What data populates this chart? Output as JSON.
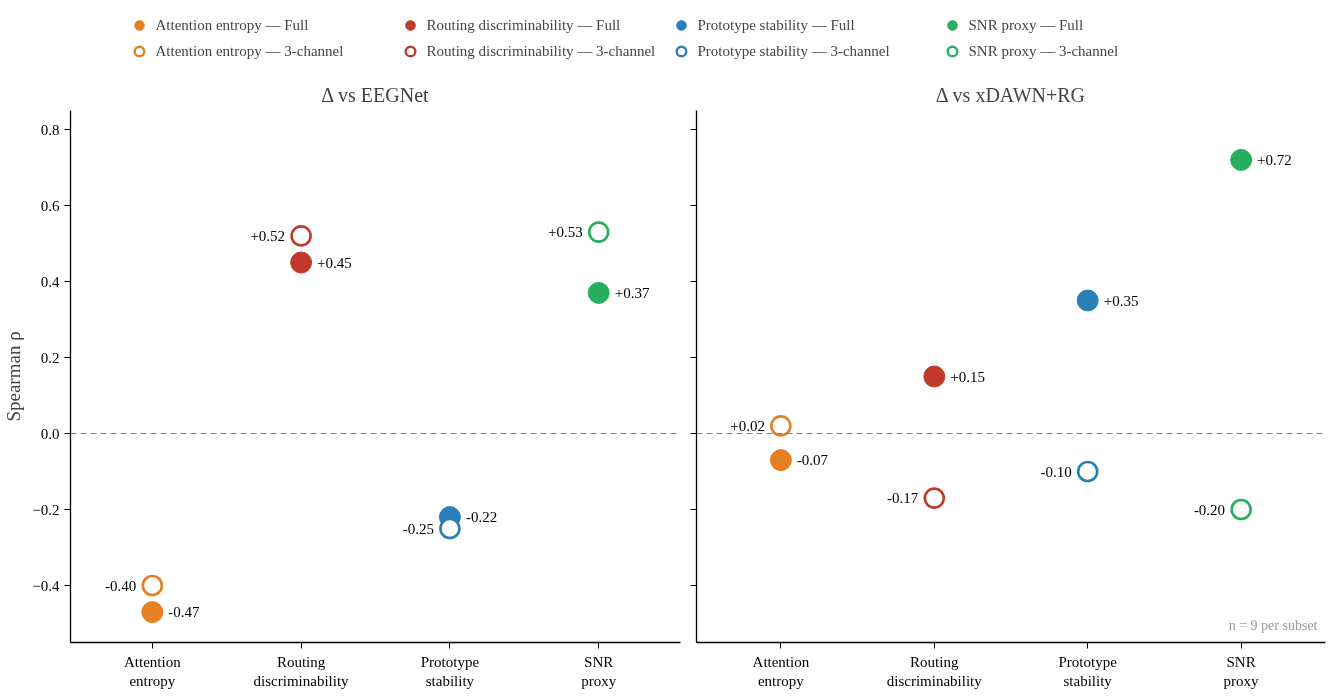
{
  "chart_data": [
    {
      "type": "scatter",
      "title": "Δ vs EEGNet",
      "ylabel": "Spearman ρ",
      "categories": [
        "Attention entropy",
        "Routing discriminability",
        "Prototype stability",
        "SNR proxy"
      ],
      "ylim": [
        -0.55,
        0.85
      ],
      "yticks": [
        {
          "value": -0.4,
          "label": "−0.4"
        },
        {
          "value": -0.2,
          "label": "−0.2"
        },
        {
          "value": 0.0,
          "label": "0.0"
        },
        {
          "value": 0.2,
          "label": "0.2"
        },
        {
          "value": 0.4,
          "label": "0.4"
        },
        {
          "value": 0.6,
          "label": "0.6"
        },
        {
          "value": 0.8,
          "label": "0.8"
        }
      ],
      "grid": false,
      "legend": "top",
      "ref_lines": [
        {
          "axis": "y",
          "value": 0,
          "color": "#808080",
          "line_style": "dashed"
        }
      ],
      "series": [
        {
          "name": "Attention entropy — Full",
          "color": "#e67e22",
          "marker": "circle",
          "values": [
            -0.47,
            null,
            null,
            null
          ],
          "value_labels": [
            "-0.47",
            null,
            null,
            null
          ]
        },
        {
          "name": "Attention entropy — 3-channel",
          "color": "#e67e22",
          "marker": "circle_open",
          "values": [
            -0.4,
            null,
            null,
            null
          ],
          "value_labels": [
            "-0.40",
            null,
            null,
            null
          ]
        },
        {
          "name": "Routing discriminability — Full",
          "color": "#c0392b",
          "marker": "circle",
          "values": [
            null,
            0.45,
            null,
            null
          ],
          "value_labels": [
            null,
            "+0.45",
            null,
            null
          ]
        },
        {
          "name": "Routing discriminability — 3-channel",
          "color": "#c0392b",
          "marker": "circle_open",
          "values": [
            null,
            0.52,
            null,
            null
          ],
          "value_labels": [
            null,
            "+0.52",
            null,
            null
          ]
        },
        {
          "name": "Prototype stability — Full",
          "color": "#2980b9",
          "marker": "circle",
          "values": [
            null,
            null,
            -0.22,
            null
          ],
          "value_labels": [
            null,
            null,
            "-0.22",
            null
          ]
        },
        {
          "name": "Prototype stability — 3-channel",
          "color": "#2980b9",
          "marker": "circle_open",
          "values": [
            null,
            null,
            -0.25,
            null
          ],
          "value_labels": [
            null,
            null,
            "-0.25",
            null
          ]
        },
        {
          "name": "SNR proxy — Full",
          "color": "#27ae60",
          "marker": "circle",
          "values": [
            null,
            null,
            null,
            0.37
          ],
          "value_labels": [
            null,
            null,
            null,
            "+0.37"
          ]
        },
        {
          "name": "SNR proxy — 3-channel",
          "color": "#27ae60",
          "marker": "circle_open",
          "values": [
            null,
            null,
            null,
            0.53
          ],
          "value_labels": [
            null,
            null,
            null,
            "+0.53"
          ]
        }
      ]
    },
    {
      "type": "scatter",
      "title": "Δ vs xDAWN+RG",
      "categories": [
        "Attention entropy",
        "Routing discriminability",
        "Prototype stability",
        "SNR proxy"
      ],
      "ylim": [
        -0.55,
        0.85
      ],
      "yticks": [
        -0.4,
        -0.2,
        0.0,
        0.2,
        0.4,
        0.6,
        0.8
      ],
      "tick_labels": "x",
      "grid": false,
      "ref_lines": [
        {
          "axis": "y",
          "value": 0,
          "color": "#808080",
          "line_style": "dashed"
        }
      ],
      "annotations": [
        "n = 9 per subset"
      ],
      "series": [
        {
          "color": "#e67e22",
          "marker": "circle",
          "values": [
            -0.07,
            null,
            null,
            null
          ],
          "value_labels": [
            "-0.07",
            null,
            null,
            null
          ]
        },
        {
          "color": "#e67e22",
          "marker": "circle_open",
          "values": [
            0.02,
            null,
            null,
            null
          ],
          "value_labels": [
            "+0.02",
            null,
            null,
            null
          ]
        },
        {
          "color": "#c0392b",
          "marker": "circle",
          "values": [
            null,
            0.15,
            null,
            null
          ],
          "value_labels": [
            null,
            "+0.15",
            null,
            null
          ]
        },
        {
          "color": "#c0392b",
          "marker": "circle_open",
          "values": [
            null,
            -0.17,
            null,
            null
          ],
          "value_labels": [
            null,
            "-0.17",
            null,
            null
          ]
        },
        {
          "color": "#2980b9",
          "marker": "circle",
          "values": [
            null,
            null,
            0.35,
            null
          ],
          "value_labels": [
            null,
            null,
            "+0.35",
            null
          ]
        },
        {
          "color": "#2980b9",
          "marker": "circle_open",
          "values": [
            null,
            null,
            -0.1,
            null
          ],
          "value_labels": [
            null,
            null,
            "-0.10",
            null
          ]
        },
        {
          "color": "#27ae60",
          "marker": "circle",
          "values": [
            null,
            null,
            null,
            0.72
          ],
          "value_labels": [
            null,
            null,
            null,
            "+0.72"
          ]
        },
        {
          "color": "#27ae60",
          "marker": "circle_open",
          "values": [
            null,
            null,
            null,
            -0.2
          ],
          "value_labels": [
            null,
            null,
            null,
            "-0.20"
          ]
        }
      ]
    }
  ]
}
